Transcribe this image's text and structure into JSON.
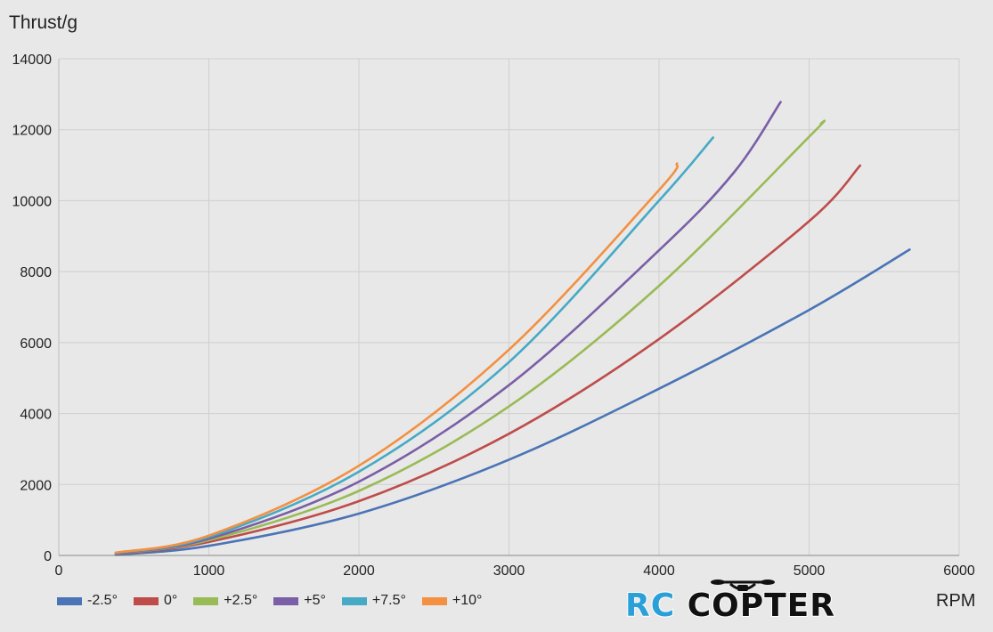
{
  "chart_data": {
    "type": "line",
    "ylabel": "Thrust/g",
    "xlabel": "RPM",
    "xlim": [
      0,
      6000
    ],
    "ylim": [
      0,
      14000
    ],
    "x_ticks": [
      "0",
      "1000",
      "2000",
      "3000",
      "4000",
      "5000",
      "6000"
    ],
    "y_ticks": [
      "0",
      "2000",
      "4000",
      "6000",
      "8000",
      "10000",
      "12000",
      "14000"
    ],
    "grid": true,
    "legend_position": "bottom-left",
    "series": [
      {
        "name": "-2.5°",
        "color": "#4a74b6",
        "points": [
          [
            380,
            20
          ],
          [
            1000,
            270
          ],
          [
            2000,
            1180
          ],
          [
            3000,
            2700
          ],
          [
            4000,
            4700
          ],
          [
            5000,
            6920
          ],
          [
            5670,
            8620
          ]
        ]
      },
      {
        "name": "0°",
        "color": "#be4c4a",
        "points": [
          [
            380,
            40
          ],
          [
            1000,
            380
          ],
          [
            2000,
            1530
          ],
          [
            3000,
            3430
          ],
          [
            4000,
            6100
          ],
          [
            5000,
            9420
          ],
          [
            5340,
            10990
          ]
        ]
      },
      {
        "name": "+2.5°",
        "color": "#99bb55",
        "points": [
          [
            380,
            55
          ],
          [
            1000,
            430
          ],
          [
            2000,
            1820
          ],
          [
            3000,
            4200
          ],
          [
            4000,
            7600
          ],
          [
            5000,
            11800
          ],
          [
            5080,
            12180
          ]
        ]
      },
      {
        "name": "+5°",
        "color": "#7a5ea6",
        "points": [
          [
            380,
            60
          ],
          [
            1000,
            470
          ],
          [
            2000,
            2080
          ],
          [
            3000,
            4800
          ],
          [
            4000,
            8600
          ],
          [
            4500,
            10800
          ],
          [
            4810,
            12780
          ]
        ]
      },
      {
        "name": "+7.5°",
        "color": "#46a9c6",
        "points": [
          [
            380,
            70
          ],
          [
            1000,
            520
          ],
          [
            2000,
            2360
          ],
          [
            3000,
            5450
          ],
          [
            4000,
            10000
          ],
          [
            4360,
            11780
          ]
        ]
      },
      {
        "name": "+10°",
        "color": "#f39041",
        "points": [
          [
            380,
            80
          ],
          [
            1000,
            560
          ],
          [
            2000,
            2530
          ],
          [
            3000,
            5800
          ],
          [
            4000,
            10300
          ],
          [
            4120,
            11050
          ]
        ]
      }
    ]
  },
  "logo": {
    "text_rc": "RC",
    "text_copter": "COPTER"
  }
}
